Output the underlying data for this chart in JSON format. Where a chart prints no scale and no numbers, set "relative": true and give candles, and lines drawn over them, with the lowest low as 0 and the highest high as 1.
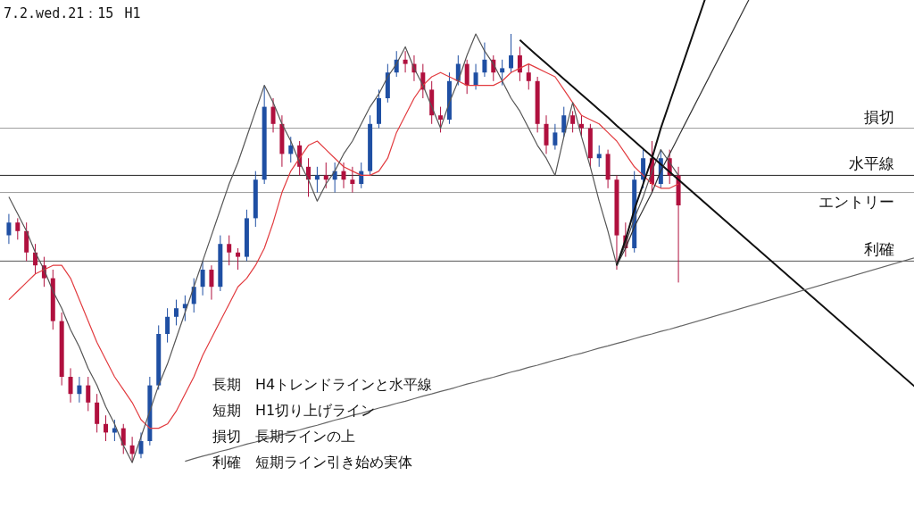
{
  "chart_data": {
    "type": "candlestick",
    "title": "7.2.wed.21：15",
    "subtitle": "H1",
    "relative": true,
    "annotations": [
      "長期　H4トレンドラインと水平線",
      "短期　H1切り上げライン",
      "損切　長期ラインの上",
      "利確　短期ライン引き始め実体"
    ],
    "categories": [
      null,
      null,
      null,
      null,
      null,
      null,
      null,
      null,
      null,
      null,
      null,
      null,
      null,
      null,
      null,
      null,
      null,
      null,
      null,
      null,
      null,
      null,
      null,
      null,
      null,
      null,
      null,
      null,
      null,
      null,
      null,
      null,
      null,
      null,
      null,
      null,
      null,
      null,
      null,
      null,
      null,
      null,
      null,
      null,
      null,
      null,
      null,
      null,
      null,
      null,
      null,
      null,
      null,
      null,
      null,
      null,
      null,
      null,
      null,
      null,
      null,
      null,
      null,
      null,
      null,
      null,
      null,
      null,
      null,
      null,
      null,
      null,
      null,
      null,
      null,
      null,
      null
    ],
    "ohlc": [
      [
        0.53,
        0.58,
        0.51,
        0.56
      ],
      [
        0.56,
        0.57,
        0.52,
        0.54
      ],
      [
        0.54,
        0.56,
        0.47,
        0.49
      ],
      [
        0.49,
        0.51,
        0.44,
        0.46
      ],
      [
        0.46,
        0.48,
        0.41,
        0.43
      ],
      [
        0.43,
        0.45,
        0.31,
        0.33
      ],
      [
        0.33,
        0.35,
        0.18,
        0.2
      ],
      [
        0.2,
        0.22,
        0.14,
        0.16
      ],
      [
        0.16,
        0.2,
        0.14,
        0.18
      ],
      [
        0.18,
        0.2,
        0.12,
        0.14
      ],
      [
        0.14,
        0.16,
        0.07,
        0.09
      ],
      [
        0.09,
        0.11,
        0.05,
        0.07
      ],
      [
        0.07,
        0.1,
        0.05,
        0.08
      ],
      [
        0.08,
        0.09,
        0.02,
        0.04
      ],
      [
        0.04,
        0.06,
        0.0,
        0.02
      ],
      [
        0.02,
        0.07,
        0.01,
        0.05
      ],
      [
        0.05,
        0.2,
        0.04,
        0.18
      ],
      [
        0.18,
        0.32,
        0.17,
        0.3
      ],
      [
        0.3,
        0.36,
        0.28,
        0.34
      ],
      [
        0.34,
        0.38,
        0.32,
        0.36
      ],
      [
        0.36,
        0.39,
        0.33,
        0.37
      ],
      [
        0.37,
        0.43,
        0.35,
        0.41
      ],
      [
        0.41,
        0.47,
        0.39,
        0.45
      ],
      [
        0.45,
        0.46,
        0.38,
        0.41
      ],
      [
        0.41,
        0.53,
        0.4,
        0.51
      ],
      [
        0.51,
        0.53,
        0.46,
        0.49
      ],
      [
        0.49,
        0.5,
        0.45,
        0.48
      ],
      [
        0.48,
        0.59,
        0.47,
        0.57
      ],
      [
        0.57,
        0.68,
        0.55,
        0.66
      ],
      [
        0.66,
        0.88,
        0.65,
        0.83
      ],
      [
        0.83,
        0.85,
        0.77,
        0.79
      ],
      [
        0.79,
        0.81,
        0.69,
        0.72
      ],
      [
        0.72,
        0.76,
        0.7,
        0.74
      ],
      [
        0.74,
        0.75,
        0.67,
        0.69
      ],
      [
        0.69,
        0.71,
        0.62,
        0.66
      ],
      [
        0.66,
        0.69,
        0.63,
        0.67
      ],
      [
        0.67,
        0.7,
        0.64,
        0.66
      ],
      [
        0.66,
        0.7,
        0.63,
        0.68
      ],
      [
        0.68,
        0.7,
        0.64,
        0.66
      ],
      [
        0.66,
        0.69,
        0.63,
        0.65
      ],
      [
        0.65,
        0.7,
        0.64,
        0.68
      ],
      [
        0.68,
        0.81,
        0.67,
        0.79
      ],
      [
        0.79,
        0.87,
        0.78,
        0.85
      ],
      [
        0.85,
        0.93,
        0.84,
        0.91
      ],
      [
        0.91,
        0.96,
        0.9,
        0.94
      ],
      [
        0.94,
        0.96,
        0.91,
        0.93
      ],
      [
        0.93,
        0.95,
        0.89,
        0.91
      ],
      [
        0.91,
        0.93,
        0.85,
        0.87
      ],
      [
        0.87,
        0.89,
        0.79,
        0.81
      ],
      [
        0.81,
        0.83,
        0.77,
        0.8
      ],
      [
        0.8,
        0.91,
        0.79,
        0.89
      ],
      [
        0.89,
        0.95,
        0.88,
        0.93
      ],
      [
        0.93,
        0.94,
        0.86,
        0.88
      ],
      [
        0.88,
        0.93,
        0.87,
        0.91
      ],
      [
        0.91,
        0.98,
        0.9,
        0.94
      ],
      [
        0.94,
        0.95,
        0.89,
        0.91
      ],
      [
        0.91,
        0.94,
        0.88,
        0.92
      ],
      [
        0.92,
        1.0,
        0.91,
        0.95
      ],
      [
        0.95,
        0.97,
        0.89,
        0.91
      ],
      [
        0.91,
        0.93,
        0.87,
        0.89
      ],
      [
        0.89,
        0.9,
        0.77,
        0.79
      ],
      [
        0.79,
        0.81,
        0.72,
        0.74
      ],
      [
        0.74,
        0.79,
        0.73,
        0.77
      ],
      [
        0.77,
        0.83,
        0.76,
        0.81
      ],
      [
        0.81,
        0.82,
        0.77,
        0.79
      ],
      [
        0.79,
        0.81,
        0.76,
        0.78
      ],
      [
        0.78,
        0.79,
        0.69,
        0.71
      ],
      [
        0.71,
        0.74,
        0.69,
        0.72
      ],
      [
        0.72,
        0.73,
        0.64,
        0.66
      ],
      [
        0.66,
        0.67,
        0.45,
        0.53
      ],
      [
        0.53,
        0.56,
        0.48,
        0.5
      ],
      [
        0.5,
        0.68,
        0.49,
        0.66
      ],
      [
        0.66,
        0.73,
        0.64,
        0.71
      ],
      [
        0.71,
        0.75,
        0.63,
        0.65
      ],
      [
        0.65,
        0.73,
        0.64,
        0.71
      ],
      [
        0.71,
        0.73,
        0.65,
        0.67
      ],
      [
        0.67,
        0.69,
        0.42,
        0.6
      ]
    ],
    "colors": [
      "#1f4fa3",
      "#b0103e",
      "#b0103e",
      "#b0103e",
      "#b0103e",
      "#b0103e",
      "#b0103e",
      "#b0103e",
      "#1f4fa3",
      "#b0103e",
      "#b0103e",
      "#b0103e",
      "#1f4fa3",
      "#b0103e",
      "#b0103e",
      "#1f4fa3",
      "#1f4fa3",
      "#1f4fa3",
      "#1f4fa3",
      "#1f4fa3",
      "#1f4fa3",
      "#1f4fa3",
      "#1f4fa3",
      "#b0103e",
      "#1f4fa3",
      "#b0103e",
      "#b0103e",
      "#1f4fa3",
      "#1f4fa3",
      "#1f4fa3",
      "#b0103e",
      "#b0103e",
      "#1f4fa3",
      "#b0103e",
      "#b0103e",
      "#1f4fa3",
      "#b0103e",
      "#1f4fa3",
      "#b0103e",
      "#b0103e",
      "#1f4fa3",
      "#1f4fa3",
      "#1f4fa3",
      "#1f4fa3",
      "#1f4fa3",
      "#b0103e",
      "#b0103e",
      "#b0103e",
      "#b0103e",
      "#b0103e",
      "#1f4fa3",
      "#1f4fa3",
      "#b0103e",
      "#1f4fa3",
      "#1f4fa3",
      "#b0103e",
      "#1f4fa3",
      "#1f4fa3",
      "#b0103e",
      "#b0103e",
      "#b0103e",
      "#b0103e",
      "#1f4fa3",
      "#1f4fa3",
      "#b0103e",
      "#b0103e",
      "#b0103e",
      "#1f4fa3",
      "#b0103e",
      "#b0103e",
      "#b0103e",
      "#1f4fa3",
      "#1f4fa3",
      "#b0103e",
      "#1f4fa3",
      "#b0103e",
      "#b0103e"
    ],
    "ref_lines": [
      {
        "axis": "y",
        "value": 0.78,
        "label": "損切",
        "color": "#9a9a9a"
      },
      {
        "axis": "y",
        "value": 0.67,
        "label": "水平線",
        "color": "#222222"
      },
      {
        "axis": "y",
        "value": 0.63,
        "label": "エントリー",
        "color": "#9a9a9a"
      },
      {
        "axis": "y",
        "value": 0.47,
        "label": "利確",
        "color": "#555555"
      }
    ],
    "series": [
      {
        "type": "line",
        "color": "#e23b3f",
        "values": [
          0.38,
          0.4,
          0.42,
          0.44,
          0.45,
          0.46,
          0.46,
          0.43,
          0.38,
          0.33,
          0.28,
          0.24,
          0.2,
          0.17,
          0.14,
          0.1,
          0.08,
          0.08,
          0.09,
          0.12,
          0.16,
          0.2,
          0.25,
          0.29,
          0.33,
          0.37,
          0.41,
          0.43,
          0.46,
          0.5,
          0.56,
          0.63,
          0.68,
          0.71,
          0.74,
          0.75,
          0.73,
          0.71,
          0.69,
          0.68,
          0.67,
          0.67,
          0.68,
          0.71,
          0.77,
          0.81,
          0.85,
          0.88,
          0.9,
          0.91,
          0.9,
          0.89,
          0.88,
          0.88,
          0.88,
          0.88,
          0.89,
          0.91,
          0.92,
          0.93,
          0.92,
          0.91,
          0.9,
          0.87,
          0.84,
          0.81,
          0.8,
          0.79,
          0.77,
          0.75,
          0.72,
          0.69,
          0.67,
          0.65,
          0.64,
          0.64,
          0.65
        ]
      },
      {
        "type": "line",
        "color": "#555555",
        "values": [
          0.62,
          0.58,
          0.54,
          0.49,
          0.45,
          0.4,
          0.36,
          0.31,
          0.27,
          0.22,
          0.18,
          0.13,
          0.09,
          0.04,
          0,
          0.06,
          0.12,
          0.18,
          0.23,
          0.29,
          0.35,
          0.41,
          0.47,
          0.53,
          0.59,
          0.65,
          0.7,
          0.76,
          0.82,
          0.88,
          0.84,
          0.79,
          0.75,
          0.7,
          0.66,
          0.61,
          0.65,
          0.68,
          0.72,
          0.75,
          0.79,
          0.83,
          0.86,
          0.9,
          0.93,
          0.97,
          0.92,
          0.88,
          0.83,
          0.78,
          0.84,
          0.89,
          0.95,
          1.0,
          0.96,
          0.93,
          0.89,
          0.85,
          0.82,
          0.78,
          0.74,
          0.71,
          0.67,
          0.76,
          0.84,
          0.76,
          0.69,
          0.61,
          0.54,
          0.46,
          0.51,
          0.57,
          0.62,
          0.68,
          0.73,
          0.7,
          0.67
        ]
      },
      {
        "type": "line",
        "color": "#111111",
        "values": [
          null,
          null,
          null,
          null,
          null,
          null,
          null,
          null,
          null,
          null,
          null,
          null,
          null,
          null,
          null,
          null,
          null,
          null,
          null,
          null,
          null,
          null,
          null,
          null,
          null,
          null,
          null,
          null,
          null,
          null,
          null,
          null,
          null,
          null,
          null,
          null,
          null,
          null,
          null,
          null,
          null,
          null,
          null,
          null,
          null,
          null,
          null,
          null,
          null,
          null,
          null,
          null,
          null,
          null,
          null,
          null,
          null,
          null,
          0.986,
          0.967,
          0.949,
          0.931,
          0.913,
          0.895,
          0.877,
          0.859,
          0.841,
          0.823,
          0.805,
          0.786,
          0.768,
          0.75,
          0.732,
          0.714,
          0.696,
          0.678,
          0.66
        ]
      },
      {
        "type": "line",
        "color": "#111111",
        "values": [
          null,
          null,
          null,
          null,
          null,
          null,
          null,
          null,
          null,
          null,
          null,
          null,
          null,
          null,
          null,
          null,
          null,
          null,
          null,
          null,
          null,
          null,
          null,
          null,
          null,
          null,
          null,
          null,
          null,
          null,
          null,
          null,
          null,
          null,
          null,
          null,
          null,
          null,
          null,
          null,
          null,
          null,
          null,
          null,
          null,
          null,
          null,
          null,
          null,
          null,
          null,
          null,
          null,
          null,
          null,
          null,
          null,
          null,
          null,
          null,
          null,
          null,
          null,
          null,
          null,
          null,
          null,
          null,
          null,
          0.46,
          0.52,
          0.59,
          0.65,
          0.71,
          0.78,
          0.84,
          0.9
        ]
      },
      {
        "type": "line",
        "color": "#333333",
        "values": [
          null,
          null,
          null,
          null,
          null,
          null,
          null,
          null,
          null,
          null,
          null,
          null,
          null,
          null,
          null,
          null,
          null,
          null,
          null,
          null,
          null,
          null,
          null,
          null,
          null,
          null,
          null,
          null,
          null,
          null,
          null,
          null,
          null,
          null,
          null,
          null,
          null,
          null,
          null,
          null,
          null,
          null,
          null,
          null,
          null,
          null,
          null,
          null,
          null,
          null,
          null,
          null,
          null,
          null,
          null,
          null,
          null,
          null,
          null,
          null,
          null,
          null,
          null,
          null,
          null,
          null,
          null,
          null,
          null,
          0.46,
          0.5,
          0.55,
          0.59,
          0.63,
          0.68,
          0.72,
          0.76
        ]
      },
      {
        "type": "line",
        "color": "#666666",
        "values": [
          null,
          null,
          null,
          null,
          null,
          null,
          null,
          null,
          null,
          null,
          null,
          null,
          null,
          null,
          null,
          null,
          null,
          null,
          null,
          null,
          0.003,
          0.009,
          0.015,
          0.02,
          0.026,
          0.031,
          0.037,
          0.043,
          0.048,
          0.054,
          0.059,
          0.065,
          0.071,
          0.076,
          0.082,
          0.087,
          0.093,
          0.099,
          0.104,
          0.11,
          0.115,
          0.121,
          0.127,
          0.132,
          0.138,
          0.143,
          0.149,
          0.155,
          0.16,
          0.166,
          0.171,
          0.177,
          0.183,
          0.188,
          0.194,
          0.199,
          0.205,
          0.211,
          0.216,
          0.222,
          0.227,
          0.233,
          0.239,
          0.244,
          0.25,
          0.255,
          0.261,
          0.267,
          0.272,
          0.278,
          0.283,
          0.289,
          0.295,
          0.3,
          0.306,
          0.311,
          0.317
        ]
      }
    ]
  }
}
